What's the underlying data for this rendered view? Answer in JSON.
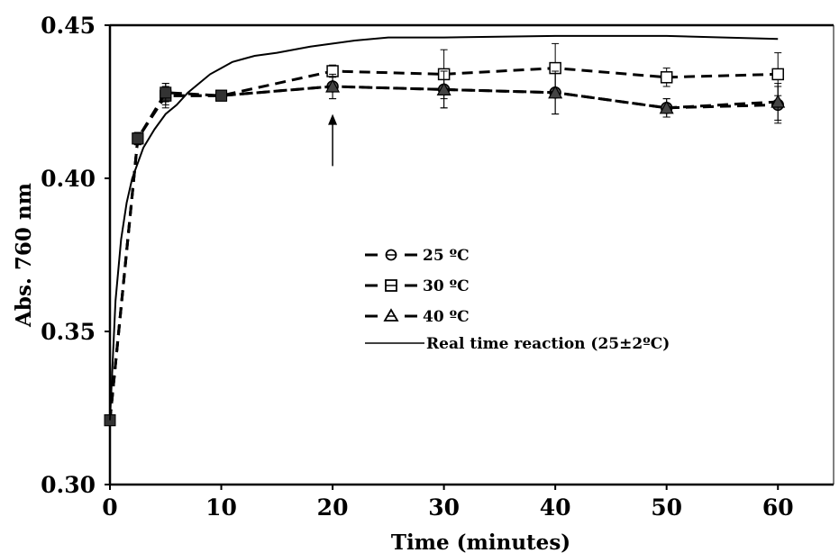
{
  "chart_data": {
    "type": "line",
    "xlabel": "Time (minutes)",
    "ylabel": "Abs. 760 nm",
    "xlim": [
      0,
      65
    ],
    "ylim": [
      0.3,
      0.45
    ],
    "x_ticks": [
      "0",
      "10",
      "20",
      "30",
      "40",
      "50",
      "60"
    ],
    "y_ticks": [
      "0.30",
      "0.35",
      "0.40",
      "0.45"
    ],
    "grid": false,
    "legend_position": "center",
    "series": [
      {
        "name": "25 ºC",
        "style": "dashed",
        "marker": "circle",
        "x": [
          0,
          2.5,
          5,
          10,
          20,
          30,
          40,
          50,
          60
        ],
        "y": [
          0.321,
          0.413,
          0.427,
          0.427,
          0.43,
          0.429,
          0.428,
          0.423,
          0.424
        ],
        "error": [
          0,
          0.002,
          0.003,
          0.001,
          0.004,
          0.006,
          0.007,
          0.003,
          0.006
        ]
      },
      {
        "name": "30 ºC",
        "style": "dashed",
        "marker": "square-open",
        "x": [
          0,
          2.5,
          5,
          10,
          20,
          30,
          40,
          50,
          60
        ],
        "y": [
          0.321,
          0.413,
          0.427,
          0.427,
          0.435,
          0.434,
          0.436,
          0.433,
          0.434
        ],
        "error": [
          0,
          0.002,
          0.004,
          0.001,
          0.002,
          0.008,
          0.008,
          0.003,
          0.007
        ]
      },
      {
        "name": " 40 ºC",
        "style": "dashed",
        "marker": "triangle",
        "x": [
          0,
          2.5,
          5,
          10,
          20,
          30,
          40,
          50,
          60
        ],
        "y": [
          0.321,
          0.413,
          0.428,
          0.427,
          0.43,
          0.429,
          0.428,
          0.423,
          0.425
        ],
        "error": [
          0,
          0.002,
          0.003,
          0.001,
          0.004,
          0.006,
          0.007,
          0.003,
          0.006
        ]
      },
      {
        "name": "Real time reaction (25±2ºC)",
        "style": "solid",
        "marker": "none",
        "x": [
          0,
          0.5,
          1,
          1.5,
          2,
          3,
          4,
          5,
          6,
          7,
          8,
          9,
          10,
          11,
          12,
          13,
          15,
          18,
          20,
          22,
          25,
          30,
          40,
          50,
          60
        ],
        "y": [
          0.321,
          0.36,
          0.38,
          0.392,
          0.4,
          0.41,
          0.416,
          0.421,
          0.424,
          0.428,
          0.431,
          0.434,
          0.436,
          0.438,
          0.439,
          0.44,
          0.441,
          0.443,
          0.444,
          0.445,
          0.446,
          0.446,
          0.4465,
          0.4465,
          0.4455
        ]
      }
    ],
    "annotations": [
      {
        "type": "arrow",
        "x": 20,
        "y_from": 0.404,
        "y_to": 0.421
      }
    ]
  }
}
